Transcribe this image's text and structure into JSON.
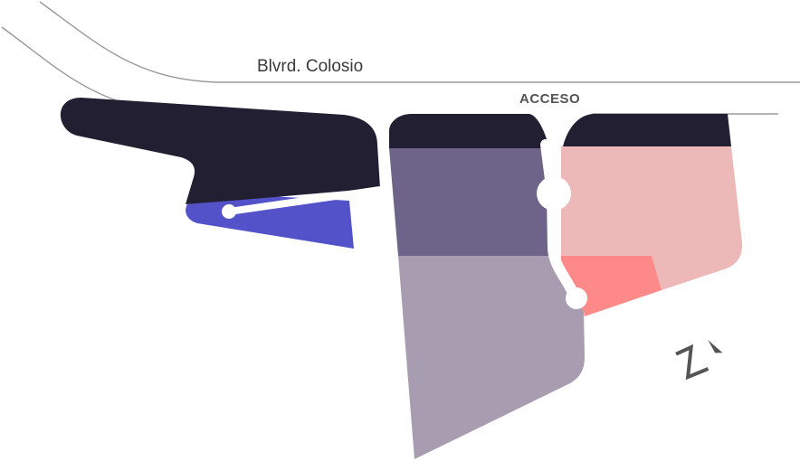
{
  "map": {
    "road_name": "Blvrd. Colosio",
    "access_label": "ACCESO",
    "colors": {
      "road": "#9a9a9a",
      "dark_zone": "#221f32",
      "blue_zone": "#5352c9",
      "purple_zone": "#6e6489",
      "light_purple_zone": "#a89cb0",
      "pink_zone": "#edb8b8",
      "salmon_zone": "#fd8a88",
      "path": "#ffffff",
      "north_arrow": "#555555"
    }
  }
}
